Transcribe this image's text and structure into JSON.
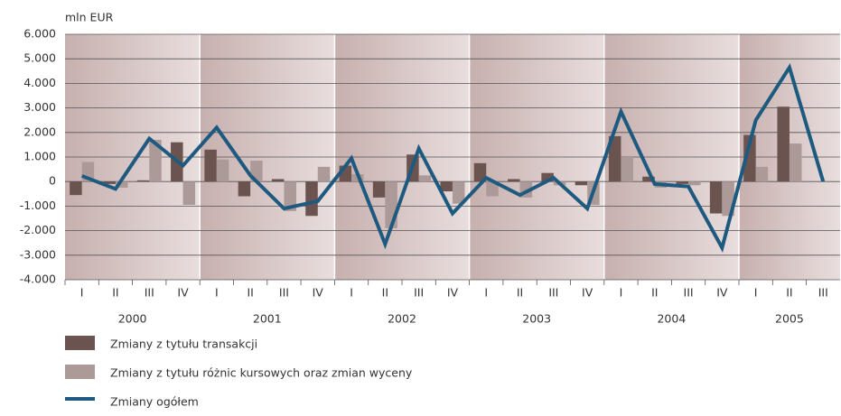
{
  "chart_data": {
    "type": "bar_line",
    "axis_label": "mln EUR",
    "categories": [
      "I",
      "II",
      "III",
      "IV",
      "I",
      "II",
      "III",
      "IV",
      "I",
      "II",
      "III",
      "IV",
      "I",
      "II",
      "III",
      "IV",
      "I",
      "II",
      "III",
      "IV",
      "I",
      "II",
      "III"
    ],
    "year_groups": [
      {
        "label": "2000",
        "count": 4
      },
      {
        "label": "2001",
        "count": 4
      },
      {
        "label": "2002",
        "count": 4
      },
      {
        "label": "2003",
        "count": 4
      },
      {
        "label": "2004",
        "count": 4
      },
      {
        "label": "2005",
        "count": 3
      }
    ],
    "ylim": [
      -4000,
      6000
    ],
    "yticks": [
      {
        "value": -4000,
        "label": "-4.000"
      },
      {
        "value": -3000,
        "label": "-3.000"
      },
      {
        "value": -2000,
        "label": "-2.000"
      },
      {
        "value": -1000,
        "label": "-1.000"
      },
      0,
      {
        "value": 1000,
        "label": "1.000"
      },
      {
        "value": 2000,
        "label": "2.000"
      },
      {
        "value": 3000,
        "label": "3.000"
      },
      {
        "value": 4000,
        "label": "4.000"
      },
      {
        "value": 5000,
        "label": "5.000"
      },
      {
        "value": 6000,
        "label": "6.000"
      }
    ],
    "grid": true,
    "series": [
      {
        "name": "Zmiany z tytułu transakcji",
        "type": "bar",
        "color": "#6b5350",
        "values": [
          -550,
          -100,
          50,
          1600,
          1300,
          -600,
          100,
          -1400,
          650,
          -650,
          1100,
          -400,
          750,
          100,
          350,
          -150,
          1850,
          200,
          -100,
          -1300,
          1900,
          3050,
          null
        ]
      },
      {
        "name": "Zmiany z tytułu różnic kursowych oraz zmian wyceny",
        "type": "bar",
        "color": "#ab9a98",
        "values": [
          800,
          -250,
          1700,
          -950,
          900,
          850,
          -1200,
          600,
          300,
          -1900,
          250,
          -900,
          -600,
          -650,
          -150,
          -950,
          1000,
          -250,
          -150,
          -1400,
          600,
          1550,
          null
        ]
      },
      {
        "name": "Zmiany ogółem",
        "type": "line",
        "color": "#1e5a80",
        "values": [
          230,
          -300,
          1750,
          650,
          2200,
          250,
          -1100,
          -800,
          950,
          -2550,
          1350,
          -1300,
          150,
          -550,
          150,
          -1100,
          2850,
          -100,
          -200,
          -2700,
          2500,
          4650,
          0
        ]
      }
    ]
  }
}
